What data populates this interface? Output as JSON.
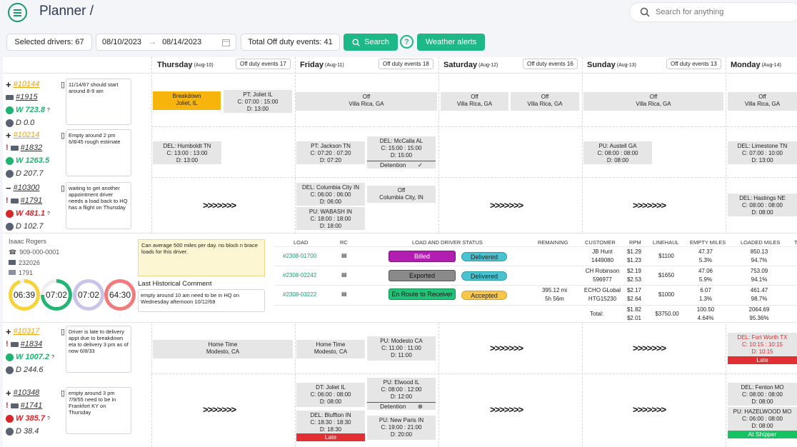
{
  "header": {
    "title": "Planner /",
    "search_placeholder": "Search for anything"
  },
  "toolbar": {
    "selected_drivers": "Selected drivers: 67",
    "date_from": "08/10/2023",
    "date_to": "08/14/2023",
    "total_off": "Total Off duty events: 41",
    "search_label": "Search",
    "help": "?",
    "weather": "Weather alerts"
  },
  "days": [
    {
      "name": "Thursday",
      "date": "(Aug-10)",
      "off": "Off duty events 17"
    },
    {
      "name": "Friday",
      "date": "(Aug-11)",
      "off": "Off duty events 18"
    },
    {
      "name": "Saturday",
      "date": "(Aug-12)",
      "off": "Off duty events 16"
    },
    {
      "name": "Sunday",
      "date": "(Aug-13)",
      "off": "Off duty events 13"
    },
    {
      "name": "Monday",
      "date": "(Aug-14)",
      "off": ""
    }
  ],
  "drivers": [
    {
      "id": "#10144",
      "truck": "#1915",
      "w": "W 723.8",
      "d": "D 0.0",
      "note": "11/14/67 should start around 8-9 am"
    },
    {
      "id": "#10214",
      "truck": "#1832",
      "w": "W 1263.5",
      "d": "D 207.7",
      "note": "Empty around 2 pm 6/8/45 rough estimate"
    },
    {
      "id": "#10300",
      "truck": "#1791",
      "w": "W 481.1",
      "d": "D 102.7",
      "note": "waiting to get another appointment driver needs a load back to HQ has a flight on Thursday"
    },
    {
      "id": "#10317",
      "truck": "#1834",
      "w": "W 1007.2",
      "d": "D 244.6",
      "note": "Driver is late to delivery appt due to breakdown eta to delivery 3 pm as of now 6/8/33"
    },
    {
      "id": "#10348",
      "truck": "#1741",
      "w": "W 385.7",
      "d": "D 38.4",
      "note": "empty around 3 pm 7/9/55 need to be in Frankfort KY on Thursday"
    }
  ],
  "events": {
    "r1": [
      {
        "l1": "Breakdown",
        "l2": "Joliet, IL"
      },
      {
        "l1": "PT: Joliet IL",
        "l2": "C: 07:00 : 15:00",
        "l3": "D: 13:00"
      },
      {
        "l1": "Off",
        "l2": "Villa Rica, GA"
      },
      {
        "l1": "Off",
        "l2": "Villa Rica, GA"
      },
      {
        "l1": "Off",
        "l2": "Villa Rica, GA"
      },
      {
        "l1": "Off",
        "l2": "Villa Rica, GA"
      },
      {
        "l1": "Off",
        "l2": "Villa Rica, GA"
      }
    ],
    "r2": [
      {
        "l1": "DEL: Humboldt TN",
        "l2": "C: 13:00 : 13:00",
        "l3": "D: 13:00"
      },
      {
        "l1": "PT: Jackson TN",
        "l2": "C: 07:20 : 07:20",
        "l3": "D: 07:20"
      },
      {
        "l1": "DEL: McCalla AL",
        "l2": "C: 15:00 : 15:00",
        "l3": "D: 15:00",
        "bar": "Detention"
      },
      {
        "l1": "PU: Austell GA",
        "l2": "C: 08:00 : 08:00",
        "l3": "D: 08:00"
      },
      {
        "l1": "DEL: Limestone TN",
        "l2": "C: 07:00 : 10:00",
        "l3": "D: 13:00"
      }
    ],
    "r3": [
      {
        "l1": "DEL: Columbia City IN",
        "l2": "C: 06:00 : 06:00",
        "l3": "D: 06:00"
      },
      {
        "l1": "PU: WABASH IN",
        "l2": "C: 18:00 : 18:00",
        "l3": "D: 18:00"
      },
      {
        "l1": "Off",
        "l2": "Columbia City, IN"
      },
      {
        "l1": "DEL: Hastings NE",
        "l2": "C: 08:00 : 08:00",
        "l3": "D: 08:00"
      }
    ],
    "r4": [
      {
        "l1": "Home Time",
        "l2": "Modesto, CA"
      },
      {
        "l1": "Home Time",
        "l2": "Modesto, CA"
      },
      {
        "l1": "PU: Modesto CA",
        "l2": "C: 11:00 : 11:00",
        "l3": "D: 11:00"
      },
      {
        "l1": "DEL: Fort Worth TX",
        "l2": "C: 10:15 : 10:15",
        "l3": "D: 10:15",
        "bar": "Late"
      }
    ],
    "r5": [
      {
        "l1": "DT: Joliet IL",
        "l2": "C: 06:00 : 08:00",
        "l3": "D: 08:00"
      },
      {
        "l1": "DEL: Bluffton IN",
        "l2": "C: 18:30 : 18:30",
        "l3": "D: 18:30",
        "bar": "Late"
      },
      {
        "l1": "PU: Elwood IL",
        "l2": "C: 08:00 : 12:00",
        "l3": "D: 12:00",
        "bar": "Detention"
      },
      {
        "l1": "PU: New Paris IN",
        "l2": "C: 19:00 : 21:00",
        "l3": "D: 20:00"
      },
      {
        "l1": "DEL: Fenton MO",
        "l2": "C: 08:00 : 08:00",
        "l3": "D: 08:00"
      },
      {
        "l1": "PU: HAZELWOOD MO",
        "l2": "C: 06:00 : 08:00",
        "l3": "D: 08:00",
        "bar": "At Shipper"
      }
    ]
  },
  "arrows": ">>>>>>>",
  "expanded": {
    "name": "Isaac Rogers",
    "phone": "909-000-0001",
    "truck": "232026",
    "trailer": "1791",
    "rings": [
      "06:39",
      "07:02",
      "07:02",
      "64:30"
    ],
    "comment": "Can average 500 miles per day.  no block n brace loads for this driver.",
    "hist_title": "Last Historical Comment",
    "hist": "empty around 10 am need to be in HQ  on Wednesday afternoon 10/12/68",
    "headers": {
      "load": "LOAD",
      "rc": "RC",
      "status": "LOAD AND DRIVER STATUS",
      "remaining": "REMAINING",
      "customer": "CUSTOMER",
      "rpm": "RPM",
      "linehaul": "LINEHAUL",
      "empty": "EMPTY MILES",
      "loaded": "LOADED MILES",
      "t": "T"
    },
    "loads": [
      {
        "load": "#2308-01700",
        "status": "Billed",
        "driver": "Delivered",
        "remaining": "",
        "remaining2": "",
        "customer": "JB Hunt",
        "customer2": "1449080",
        "rpm": "$1.29",
        "rpm2": "$1.23",
        "linehaul": "$1100",
        "empty": "47.37",
        "empty2": "5.3%",
        "loaded": "850.13",
        "loaded2": "94.7%"
      },
      {
        "load": "#2308-02242",
        "status": "Exported",
        "driver": "Delivered",
        "remaining": "",
        "remaining2": "",
        "customer": "CH Robinson",
        "customer2": "596977",
        "rpm": "$2.19",
        "rpm2": "$2.53",
        "linehaul": "$1650",
        "empty": "47.06",
        "empty2": "5.9%",
        "loaded": "753.09",
        "loaded2": "94.1%"
      },
      {
        "load": "#2308-03222",
        "status": "En Route to Receiver",
        "driver": "Accepted",
        "remaining": "395.12 mi",
        "remaining2": "5h 56m",
        "customer": "ECHO GLobal",
        "customer2": "HTG15230",
        "rpm": "$2.17",
        "rpm2": "$2.64",
        "linehaul": "$1000",
        "empty": "6.07",
        "empty2": "1.3%",
        "loaded": "461.47",
        "loaded2": "98.7%"
      }
    ],
    "total": {
      "label": "Total:",
      "rpm": "$1.82",
      "rpm2": "$2.01",
      "linehaul": "$3750.00",
      "empty": "100.50",
      "empty2": "4.64%",
      "loaded": "2064.69",
      "loaded2": "95.36%"
    }
  }
}
